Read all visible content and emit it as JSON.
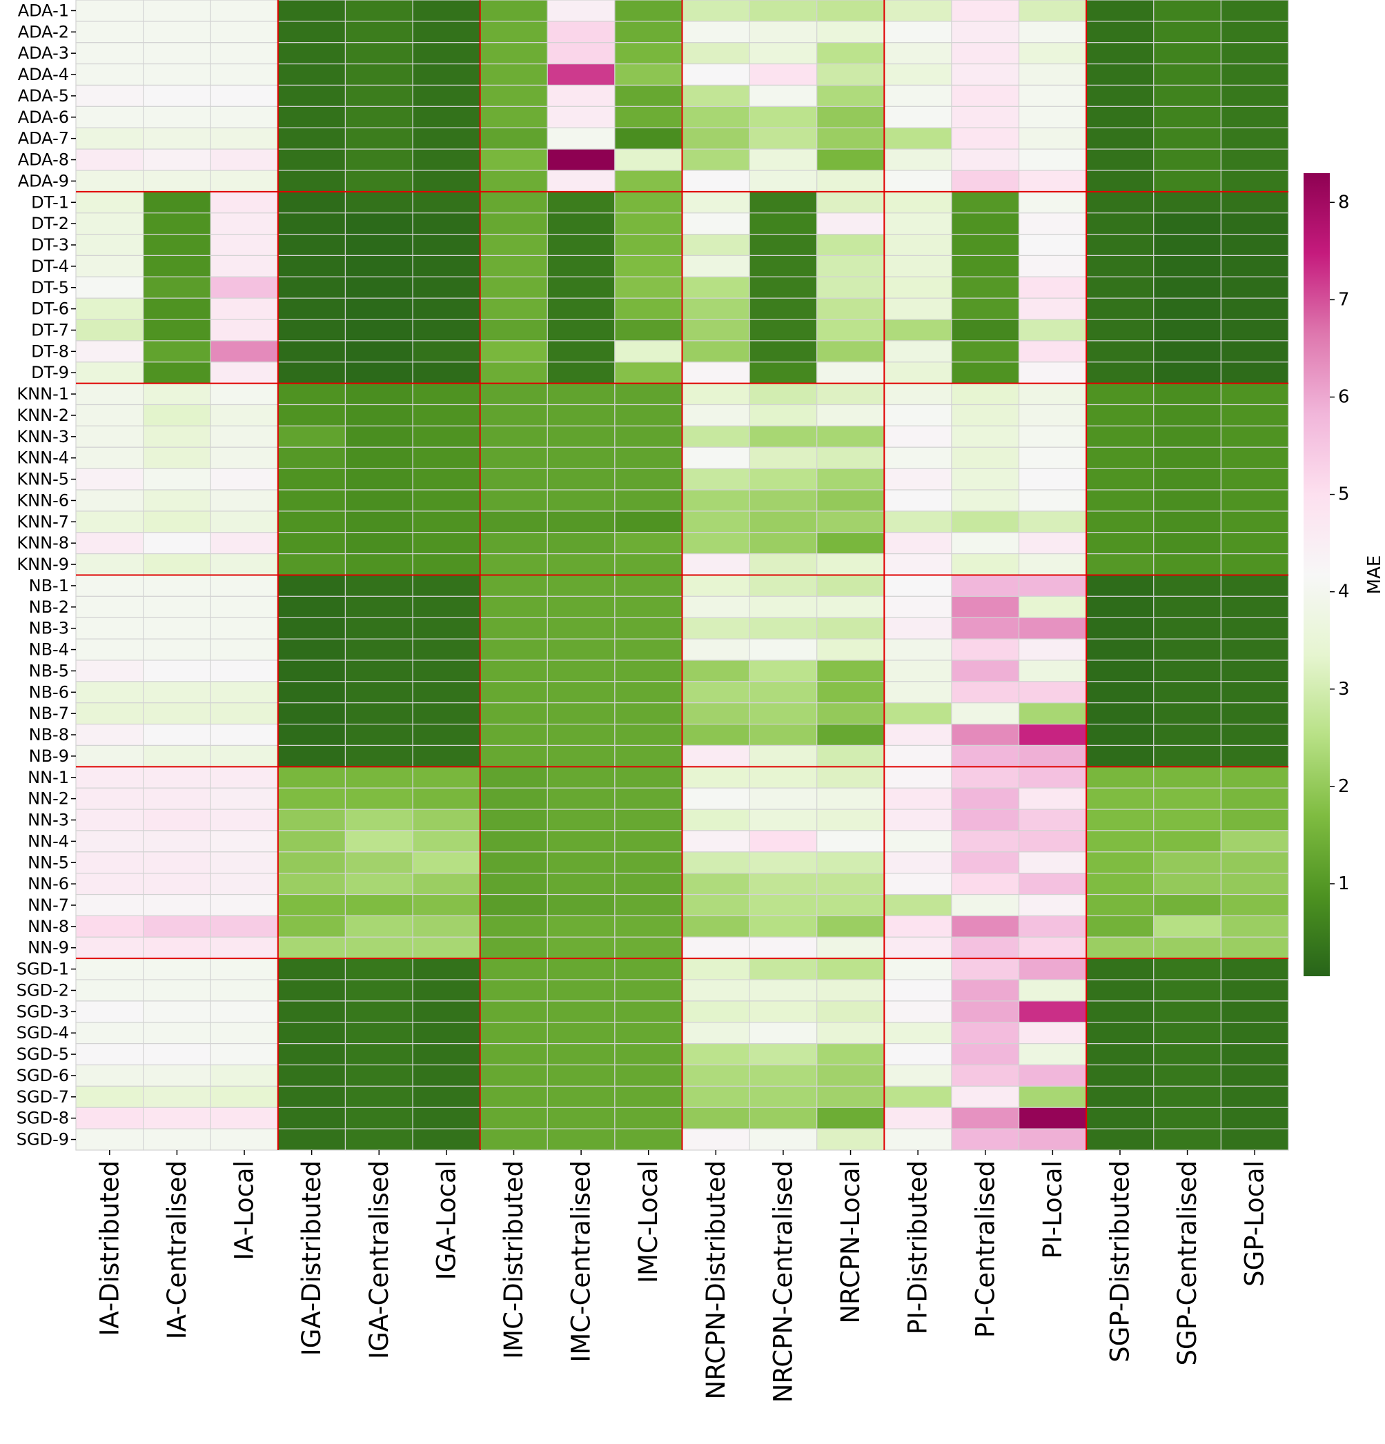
{
  "chart_data": {
    "type": "heatmap",
    "title": "",
    "xlabel": "",
    "ylabel": "",
    "colorbar": {
      "label": "MAE",
      "range": [
        0.05,
        8.3
      ],
      "ticks": [
        1,
        2,
        3,
        4,
        5,
        6,
        7,
        8
      ],
      "colormap": "PiYG_r",
      "position": "right"
    },
    "x_categories": [
      "IA-Distributed",
      "IA-Centralised",
      "IA-Local",
      "IGA-Distributed",
      "IGA-Centralised",
      "IGA-Local",
      "IMC-Distributed",
      "IMC-Centralised",
      "IMC-Local",
      "NRCPN-Distributed",
      "NRCPN-Centralised",
      "NRCPN-Local",
      "PI-Distributed",
      "PI-Centralised",
      "PI-Local",
      "SGP-Distributed",
      "SGP-Centralised",
      "SGP-Local"
    ],
    "y_categories": [
      "ADA-1",
      "ADA-2",
      "ADA-3",
      "ADA-4",
      "ADA-5",
      "ADA-6",
      "ADA-7",
      "ADA-8",
      "ADA-9",
      "DT-1",
      "DT-2",
      "DT-3",
      "DT-4",
      "DT-5",
      "DT-6",
      "DT-7",
      "DT-8",
      "DT-9",
      "KNN-1",
      "KNN-2",
      "KNN-3",
      "KNN-4",
      "KNN-5",
      "KNN-6",
      "KNN-7",
      "KNN-8",
      "KNN-9",
      "NB-1",
      "NB-2",
      "NB-3",
      "NB-4",
      "NB-5",
      "NB-6",
      "NB-7",
      "NB-8",
      "NB-9",
      "NN-1",
      "NN-2",
      "NN-3",
      "NN-4",
      "NN-5",
      "NN-6",
      "NN-7",
      "NN-8",
      "NN-9",
      "SGD-1",
      "SGD-2",
      "SGD-3",
      "SGD-4",
      "SGD-5",
      "SGD-6",
      "SGD-7",
      "SGD-8",
      "SGD-9"
    ],
    "values": [
      [
        4.0,
        4.0,
        4.0,
        0.3,
        0.5,
        0.3,
        1.3,
        4.5,
        1.3,
        3.0,
        2.8,
        2.7,
        3.2,
        4.8,
        3.1,
        0.3,
        0.6,
        0.4
      ],
      [
        4.0,
        4.0,
        4.0,
        0.3,
        0.5,
        0.3,
        1.4,
        5.2,
        1.4,
        4.0,
        3.8,
        3.6,
        4.1,
        4.6,
        4.0,
        0.3,
        0.6,
        0.4
      ],
      [
        4.0,
        4.0,
        4.0,
        0.3,
        0.5,
        0.3,
        1.4,
        5.2,
        1.6,
        3.2,
        3.6,
        2.6,
        3.8,
        4.7,
        3.6,
        0.3,
        0.6,
        0.4
      ],
      [
        4.0,
        4.0,
        4.0,
        0.3,
        0.5,
        0.3,
        1.4,
        7.2,
        1.9,
        4.2,
        4.9,
        2.9,
        3.6,
        4.6,
        3.9,
        0.3,
        0.6,
        0.4
      ],
      [
        4.3,
        4.2,
        4.2,
        0.3,
        0.5,
        0.3,
        1.4,
        4.7,
        1.3,
        2.7,
        4.0,
        2.4,
        4.0,
        4.8,
        4.0,
        0.3,
        0.6,
        0.4
      ],
      [
        4.0,
        4.0,
        4.0,
        0.3,
        0.5,
        0.3,
        1.4,
        4.6,
        1.4,
        2.3,
        2.6,
        2.0,
        4.1,
        4.7,
        4.0,
        0.3,
        0.6,
        0.4
      ],
      [
        3.7,
        3.8,
        3.8,
        0.3,
        0.5,
        0.3,
        1.2,
        4.0,
        0.8,
        2.2,
        2.7,
        2.1,
        2.6,
        4.8,
        3.9,
        0.3,
        0.6,
        0.4
      ],
      [
        4.6,
        4.4,
        4.6,
        0.3,
        0.5,
        0.3,
        1.6,
        8.3,
        3.3,
        2.4,
        3.6,
        1.6,
        3.7,
        4.6,
        4.1,
        0.3,
        0.6,
        0.4
      ],
      [
        3.8,
        3.8,
        3.8,
        0.3,
        0.5,
        0.3,
        1.4,
        4.6,
        1.8,
        4.2,
        3.7,
        3.5,
        4.1,
        5.3,
        4.8,
        0.3,
        0.6,
        0.4
      ],
      [
        3.6,
        0.8,
        4.7,
        0.2,
        0.3,
        0.3,
        1.3,
        0.5,
        1.6,
        3.6,
        0.5,
        3.2,
        3.4,
        1.0,
        4.0,
        0.3,
        0.3,
        0.3
      ],
      [
        3.7,
        0.9,
        4.6,
        0.2,
        0.15,
        0.2,
        1.3,
        0.4,
        1.6,
        4.1,
        0.6,
        4.5,
        3.6,
        0.9,
        4.3,
        0.3,
        0.15,
        0.2
      ],
      [
        3.7,
        0.9,
        4.6,
        0.2,
        0.15,
        0.2,
        1.4,
        0.4,
        1.6,
        3.1,
        0.5,
        2.8,
        3.5,
        0.9,
        4.2,
        0.3,
        0.15,
        0.2
      ],
      [
        3.8,
        0.9,
        4.6,
        0.2,
        0.15,
        0.2,
        1.4,
        0.4,
        1.7,
        3.7,
        0.5,
        3.0,
        3.5,
        0.9,
        4.3,
        0.3,
        0.15,
        0.2
      ],
      [
        4.1,
        1.1,
        5.6,
        0.2,
        0.15,
        0.2,
        1.4,
        0.4,
        1.8,
        2.5,
        0.5,
        3.0,
        3.4,
        1.0,
        4.9,
        0.3,
        0.15,
        0.2
      ],
      [
        3.3,
        0.9,
        4.7,
        0.2,
        0.15,
        0.2,
        1.4,
        0.4,
        1.6,
        2.3,
        0.5,
        2.7,
        3.5,
        1.0,
        4.7,
        0.3,
        0.15,
        0.2
      ],
      [
        3.1,
        0.9,
        4.7,
        0.2,
        0.15,
        0.2,
        1.2,
        0.4,
        1.1,
        2.2,
        0.5,
        2.6,
        2.4,
        0.7,
        3.0,
        0.3,
        0.15,
        0.2
      ],
      [
        4.4,
        1.2,
        6.4,
        0.2,
        0.15,
        0.3,
        1.6,
        0.4,
        3.3,
        2.1,
        0.5,
        2.2,
        3.7,
        1.0,
        4.9,
        0.3,
        0.15,
        0.2
      ],
      [
        3.6,
        0.9,
        4.6,
        0.2,
        0.15,
        0.2,
        1.4,
        0.4,
        1.8,
        4.3,
        0.7,
        3.9,
        3.5,
        0.9,
        4.3,
        0.3,
        0.15,
        0.2
      ],
      [
        3.9,
        3.6,
        4.0,
        0.9,
        0.8,
        0.9,
        1.2,
        1.2,
        1.2,
        3.4,
        3.0,
        3.2,
        3.8,
        3.4,
        3.8,
        0.9,
        0.8,
        0.9
      ],
      [
        3.9,
        3.3,
        3.8,
        0.9,
        0.8,
        0.9,
        1.2,
        1.2,
        1.2,
        3.9,
        3.3,
        3.8,
        4.1,
        3.5,
        3.9,
        0.9,
        0.8,
        0.9
      ],
      [
        3.9,
        3.5,
        3.9,
        1.2,
        0.8,
        0.9,
        1.2,
        1.2,
        1.2,
        2.8,
        2.3,
        2.3,
        4.3,
        3.6,
        4.0,
        0.9,
        0.8,
        0.9
      ],
      [
        3.9,
        3.5,
        3.9,
        1.0,
        0.8,
        0.9,
        1.2,
        1.2,
        1.2,
        4.1,
        3.2,
        3.1,
        4.0,
        3.5,
        4.1,
        0.9,
        0.8,
        0.9
      ],
      [
        4.4,
        4.0,
        4.3,
        0.9,
        0.8,
        0.9,
        1.2,
        1.2,
        1.2,
        2.8,
        2.6,
        2.3,
        4.4,
        3.6,
        4.2,
        0.9,
        0.8,
        0.9
      ],
      [
        3.9,
        3.6,
        3.9,
        0.9,
        0.8,
        0.9,
        1.2,
        1.2,
        1.2,
        2.3,
        2.2,
        2.0,
        4.2,
        3.6,
        4.1,
        0.9,
        0.8,
        0.9
      ],
      [
        3.6,
        3.4,
        3.7,
        0.9,
        0.8,
        0.9,
        1.0,
        1.0,
        0.9,
        2.3,
        2.1,
        2.2,
        3.1,
        2.8,
        3.1,
        0.9,
        0.8,
        0.9
      ],
      [
        4.6,
        4.2,
        4.6,
        0.9,
        0.8,
        0.9,
        1.2,
        1.2,
        1.4,
        2.3,
        2.1,
        1.6,
        4.6,
        4.0,
        4.6,
        0.9,
        0.8,
        0.9
      ],
      [
        3.7,
        3.4,
        3.7,
        1.0,
        0.9,
        0.9,
        1.3,
        1.3,
        1.3,
        4.5,
        3.2,
        3.4,
        4.4,
        3.4,
        3.8,
        1.0,
        0.9,
        0.9
      ],
      [
        4.0,
        4.0,
        4.0,
        0.2,
        0.3,
        0.3,
        1.3,
        1.3,
        1.3,
        3.4,
        3.1,
        2.9,
        4.2,
        5.8,
        5.8,
        0.2,
        0.3,
        0.3
      ],
      [
        4.0,
        4.0,
        4.0,
        0.2,
        0.3,
        0.3,
        1.3,
        1.3,
        1.3,
        3.8,
        3.6,
        3.6,
        4.3,
        6.4,
        3.4,
        0.2,
        0.3,
        0.3
      ],
      [
        4.0,
        4.0,
        4.0,
        0.2,
        0.3,
        0.3,
        1.3,
        1.3,
        1.3,
        3.1,
        3.0,
        2.9,
        4.5,
        6.2,
        6.3,
        0.2,
        0.3,
        0.3
      ],
      [
        4.0,
        4.0,
        4.0,
        0.2,
        0.3,
        0.3,
        1.3,
        1.3,
        1.3,
        3.9,
        4.0,
        3.4,
        3.9,
        5.2,
        4.5,
        0.2,
        0.3,
        0.3
      ],
      [
        4.4,
        4.2,
        4.2,
        0.2,
        0.3,
        0.3,
        1.3,
        1.3,
        1.3,
        2.1,
        2.6,
        1.8,
        3.8,
        5.9,
        3.7,
        0.2,
        0.3,
        0.3
      ],
      [
        3.6,
        3.6,
        3.6,
        0.2,
        0.3,
        0.3,
        1.3,
        1.3,
        1.3,
        2.4,
        2.4,
        1.8,
        3.8,
        5.3,
        5.3,
        0.2,
        0.3,
        0.3
      ],
      [
        3.5,
        3.5,
        3.5,
        0.2,
        0.3,
        0.3,
        1.3,
        1.3,
        1.3,
        2.2,
        2.3,
        2.0,
        2.6,
        3.8,
        2.3,
        0.2,
        0.3,
        0.3
      ],
      [
        4.4,
        4.2,
        4.2,
        0.2,
        0.3,
        0.3,
        1.3,
        1.3,
        1.3,
        1.9,
        2.1,
        1.3,
        4.6,
        6.4,
        7.4,
        0.2,
        0.3,
        0.3
      ],
      [
        3.9,
        3.7,
        3.7,
        0.2,
        0.3,
        0.3,
        1.3,
        1.3,
        1.3,
        4.6,
        3.5,
        3.0,
        4.3,
        5.8,
        5.9,
        0.2,
        0.3,
        0.3
      ],
      [
        4.6,
        4.6,
        4.6,
        1.6,
        1.6,
        1.6,
        1.2,
        1.3,
        1.3,
        3.4,
        3.4,
        3.2,
        4.3,
        5.4,
        5.6,
        1.6,
        1.6,
        1.6
      ],
      [
        4.6,
        4.6,
        4.5,
        1.7,
        1.7,
        1.6,
        1.2,
        1.3,
        1.3,
        4.1,
        3.9,
        3.8,
        4.7,
        5.8,
        4.7,
        1.7,
        1.7,
        1.6
      ],
      [
        4.6,
        4.7,
        4.6,
        2.0,
        2.3,
        2.1,
        1.2,
        1.3,
        1.3,
        3.3,
        3.6,
        3.5,
        4.6,
        5.8,
        5.4,
        1.7,
        1.7,
        1.6
      ],
      [
        4.5,
        4.5,
        4.4,
        2.0,
        2.6,
        2.3,
        1.2,
        1.3,
        1.3,
        4.4,
        5.0,
        4.1,
        4.0,
        5.4,
        5.5,
        1.7,
        1.7,
        2.2
      ],
      [
        4.6,
        4.6,
        4.5,
        2.0,
        2.2,
        2.5,
        1.2,
        1.3,
        1.3,
        3.0,
        3.1,
        3.0,
        4.5,
        5.6,
        4.5,
        1.7,
        2.0,
        2.0
      ],
      [
        4.6,
        4.6,
        4.5,
        2.1,
        2.3,
        2.1,
        1.2,
        1.3,
        1.3,
        2.4,
        2.7,
        2.7,
        4.3,
        5.1,
        5.6,
        1.7,
        2.0,
        2.0
      ],
      [
        4.3,
        4.3,
        4.3,
        1.7,
        1.7,
        1.8,
        1.1,
        1.2,
        1.3,
        2.4,
        2.6,
        2.6,
        2.7,
        3.9,
        4.4,
        1.6,
        1.5,
        1.8
      ],
      [
        5.1,
        5.4,
        5.4,
        1.8,
        2.3,
        2.2,
        1.3,
        1.4,
        1.4,
        2.1,
        2.5,
        2.1,
        4.9,
        6.4,
        5.6,
        1.5,
        2.5,
        2.1
      ],
      [
        4.7,
        4.8,
        4.7,
        2.3,
        2.3,
        2.3,
        1.3,
        1.4,
        1.4,
        4.3,
        4.3,
        3.8,
        4.6,
        5.6,
        5.2,
        2.1,
        2.1,
        2.1
      ],
      [
        4.0,
        4.0,
        4.0,
        0.3,
        0.4,
        0.3,
        1.3,
        1.3,
        1.3,
        3.3,
        2.8,
        2.6,
        4.0,
        5.4,
        6.0,
        0.3,
        0.4,
        0.3
      ],
      [
        4.0,
        4.0,
        4.0,
        0.3,
        0.4,
        0.3,
        1.3,
        1.3,
        1.3,
        3.6,
        3.6,
        3.5,
        4.2,
        6.0,
        3.6,
        0.3,
        0.4,
        0.3
      ],
      [
        4.2,
        4.1,
        4.1,
        0.3,
        0.4,
        0.3,
        1.3,
        1.3,
        1.3,
        3.3,
        3.4,
        3.2,
        4.3,
        6.0,
        7.3,
        0.3,
        0.4,
        0.3
      ],
      [
        4.0,
        4.0,
        4.0,
        0.3,
        0.4,
        0.3,
        1.3,
        1.3,
        1.3,
        3.7,
        4.0,
        3.5,
        3.6,
        5.7,
        4.7,
        0.3,
        0.4,
        0.3
      ],
      [
        4.2,
        4.2,
        4.1,
        0.3,
        0.4,
        0.3,
        1.3,
        1.3,
        1.3,
        2.6,
        2.8,
        2.3,
        4.2,
        5.8,
        3.7,
        0.3,
        0.4,
        0.3
      ],
      [
        3.9,
        3.9,
        3.7,
        0.3,
        0.4,
        0.3,
        1.3,
        1.3,
        1.3,
        2.4,
        2.4,
        2.2,
        3.8,
        5.5,
        5.8,
        0.3,
        0.4,
        0.3
      ],
      [
        3.4,
        3.5,
        3.4,
        0.3,
        0.4,
        0.3,
        1.3,
        1.3,
        1.3,
        2.3,
        2.3,
        2.2,
        2.6,
        4.6,
        2.3,
        0.3,
        0.4,
        0.3
      ],
      [
        4.9,
        4.8,
        4.8,
        0.3,
        0.4,
        0.3,
        1.3,
        1.3,
        1.3,
        2.0,
        2.1,
        1.4,
        4.7,
        6.3,
        8.2,
        0.3,
        0.4,
        0.3
      ],
      [
        4.0,
        4.0,
        4.0,
        0.3,
        0.4,
        0.3,
        1.3,
        1.3,
        1.3,
        4.3,
        4.0,
        3.2,
        4.0,
        5.8,
        5.9,
        0.3,
        0.4,
        0.3
      ]
    ]
  }
}
